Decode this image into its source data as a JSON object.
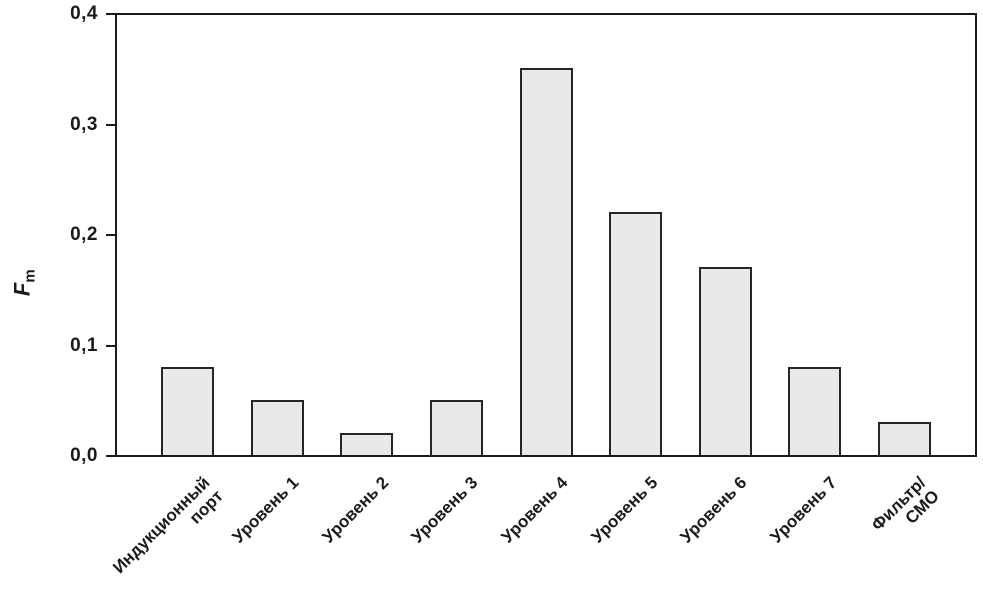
{
  "chart_data": {
    "type": "bar",
    "title": "",
    "xlabel": "",
    "ylabel": "Fm",
    "ylabel_main": "F",
    "ylabel_sub": "m",
    "categories": [
      "Индукционный\nпорт",
      "Уровень 1",
      "Уровень 2",
      "Уровень 3",
      "Уровень 4",
      "Уровень 5",
      "Уровень 6",
      "Уровень 7",
      "Фильтр/СМО"
    ],
    "values": [
      0.08,
      0.05,
      0.02,
      0.05,
      0.35,
      0.22,
      0.17,
      0.08,
      0.03
    ],
    "ylim": [
      0,
      0.4
    ],
    "yticks": [
      0.0,
      0.1,
      0.2,
      0.3,
      0.4
    ],
    "ytick_labels": [
      "0,0",
      "0,1",
      "0,2",
      "0,3",
      "0,4"
    ],
    "grid": false,
    "legend": null,
    "xlabel_rotation_deg": 45,
    "colors": {
      "bar_fill": "#e9e9e9",
      "bar_border": "#262626",
      "frame": "#1a1a1a",
      "text": "#1a1a1a",
      "background": "#ffffff"
    }
  }
}
